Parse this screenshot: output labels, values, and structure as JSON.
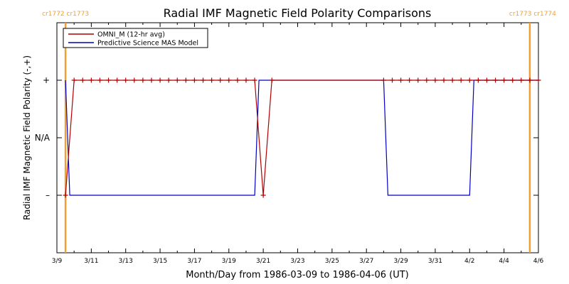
{
  "chart_data": {
    "type": "line",
    "title": "Radial IMF Magnetic Field Polarity Comparisons",
    "xlabel": "Month/Day from 1986-03-09 to 1986-04-06 (UT)",
    "ylabel": "Radial IMF Magnetic Field Polarity (-,+)",
    "x_unit": "days",
    "xlim": [
      "1986-03-09",
      "1986-04-06"
    ],
    "x_tick_labels": [
      "3/9",
      "3/11",
      "3/13",
      "3/15",
      "3/17",
      "3/19",
      "3/21",
      "3/23",
      "3/25",
      "3/27",
      "3/29",
      "3/31",
      "4/2",
      "4/4",
      "4/6"
    ],
    "y_ticks": [
      {
        "value": 1,
        "label": "+"
      },
      {
        "value": 0,
        "label": "N/A"
      },
      {
        "value": -1,
        "label": "–"
      }
    ],
    "ylim": [
      -2,
      2
    ],
    "carrington_markers": [
      {
        "x": "1986-03-09T12:00",
        "label": "cr1772 cr1773",
        "color": "#f0a030"
      },
      {
        "x": "1986-04-05T12:00",
        "label": "cr1773 cr1774",
        "color": "#f0a030"
      }
    ],
    "legend_position": "top-left",
    "series": [
      {
        "name": "OMNI_M (12-hr avg)",
        "color": "#b00000",
        "marker": "+",
        "points": [
          [
            "1986-03-09T12:00",
            -1
          ],
          [
            "1986-03-10T00:00",
            1
          ],
          [
            "1986-03-10T12:00",
            1
          ],
          [
            "1986-03-11T00:00",
            1
          ],
          [
            "1986-03-11T12:00",
            1
          ],
          [
            "1986-03-12T00:00",
            1
          ],
          [
            "1986-03-12T12:00",
            1
          ],
          [
            "1986-03-13T00:00",
            1
          ],
          [
            "1986-03-13T12:00",
            1
          ],
          [
            "1986-03-14T00:00",
            1
          ],
          [
            "1986-03-14T12:00",
            1
          ],
          [
            "1986-03-15T00:00",
            1
          ],
          [
            "1986-03-15T12:00",
            1
          ],
          [
            "1986-03-16T00:00",
            1
          ],
          [
            "1986-03-16T12:00",
            1
          ],
          [
            "1986-03-17T00:00",
            1
          ],
          [
            "1986-03-17T12:00",
            1
          ],
          [
            "1986-03-18T00:00",
            1
          ],
          [
            "1986-03-18T12:00",
            1
          ],
          [
            "1986-03-19T00:00",
            1
          ],
          [
            "1986-03-19T12:00",
            1
          ],
          [
            "1986-03-20T00:00",
            1
          ],
          [
            "1986-03-20T12:00",
            1
          ],
          [
            "1986-03-21T00:00",
            -1
          ],
          [
            "1986-03-21T12:00",
            1
          ],
          [
            "1986-03-28T00:00",
            1
          ],
          [
            "1986-03-28T12:00",
            1
          ],
          [
            "1986-03-29T00:00",
            1
          ],
          [
            "1986-03-29T12:00",
            1
          ],
          [
            "1986-03-30T00:00",
            1
          ],
          [
            "1986-03-30T12:00",
            1
          ],
          [
            "1986-03-31T00:00",
            1
          ],
          [
            "1986-03-31T12:00",
            1
          ],
          [
            "1986-04-01T00:00",
            1
          ],
          [
            "1986-04-01T12:00",
            1
          ],
          [
            "1986-04-02T00:00",
            1
          ],
          [
            "1986-04-02T12:00",
            1
          ],
          [
            "1986-04-03T00:00",
            1
          ],
          [
            "1986-04-03T12:00",
            1
          ],
          [
            "1986-04-04T00:00",
            1
          ],
          [
            "1986-04-04T12:00",
            1
          ],
          [
            "1986-04-05T00:00",
            1
          ],
          [
            "1986-04-05T12:00",
            1
          ],
          [
            "1986-04-06T00:00",
            1
          ]
        ]
      },
      {
        "name": "Predictive Science MAS Model",
        "color": "#0000c0",
        "marker": "none",
        "points": [
          [
            "1986-03-09T12:00",
            1
          ],
          [
            "1986-03-09T18:00",
            -1
          ],
          [
            "1986-03-20T12:00",
            -1
          ],
          [
            "1986-03-20T18:00",
            1
          ],
          [
            "1986-03-28T00:00",
            1
          ],
          [
            "1986-03-28T06:00",
            -1
          ],
          [
            "1986-04-02T00:00",
            -1
          ],
          [
            "1986-04-02T06:00",
            1
          ],
          [
            "1986-04-06T00:00",
            1
          ]
        ]
      }
    ]
  }
}
